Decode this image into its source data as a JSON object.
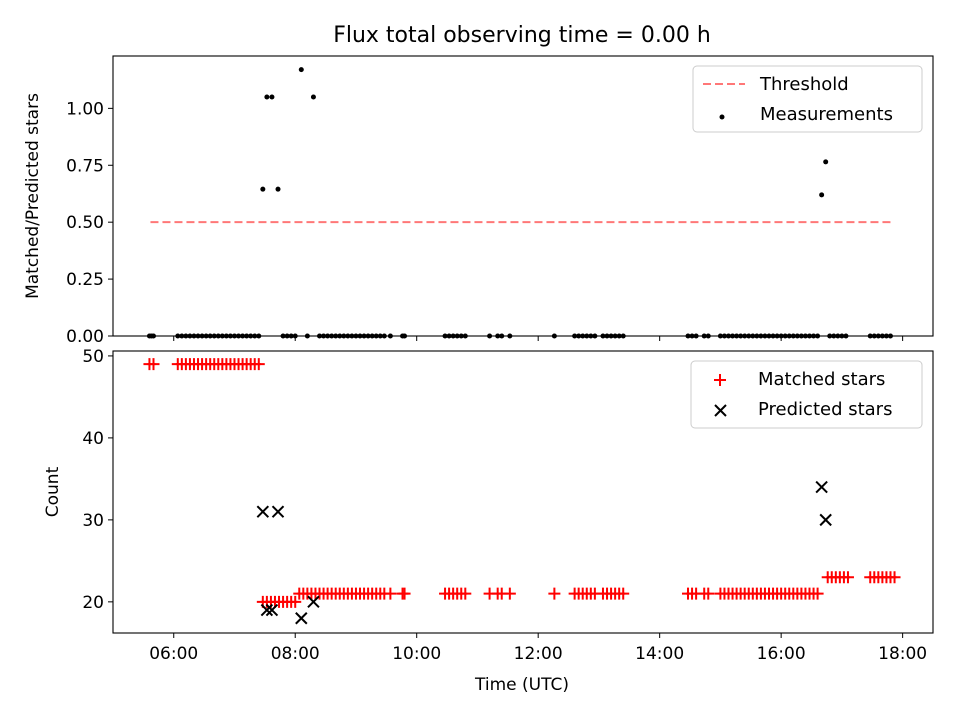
{
  "title": "Flux total observing time = 0.00 h",
  "colors": {
    "threshold": "#ff7777",
    "measurements": "#000000",
    "matched": "#ff0000",
    "predicted": "#000000"
  },
  "chart_data": [
    {
      "type": "scatter",
      "ylabel": "Matched/Predicted stars",
      "xlim": [
        "05:00",
        "18:30"
      ],
      "ylim": [
        0,
        1.23
      ],
      "y_ticks": [
        0.0,
        0.25,
        0.5,
        0.75,
        1.0
      ],
      "y_tick_labels": [
        "0.00",
        "0.25",
        "0.50",
        "0.75",
        "1.00"
      ],
      "x_ticks": [
        "06:00",
        "08:00",
        "10:00",
        "12:00",
        "14:00",
        "16:00",
        "18:00"
      ],
      "grid": false,
      "legend": "upper right",
      "threshold": {
        "name": "Threshold",
        "value": 0.5,
        "x_start": "05:37",
        "x_end": "17:48"
      },
      "series": [
        {
          "name": "Measurements",
          "points": [
            [
              "05:36",
              0
            ],
            [
              "05:38",
              0
            ],
            [
              "05:40",
              0
            ],
            [
              "06:04",
              0
            ],
            [
              "06:08",
              0
            ],
            [
              "06:12",
              0
            ],
            [
              "06:16",
              0
            ],
            [
              "06:20",
              0
            ],
            [
              "06:24",
              0
            ],
            [
              "06:28",
              0
            ],
            [
              "06:32",
              0
            ],
            [
              "06:36",
              0
            ],
            [
              "06:40",
              0
            ],
            [
              "06:44",
              0
            ],
            [
              "06:48",
              0
            ],
            [
              "06:52",
              0
            ],
            [
              "06:56",
              0
            ],
            [
              "07:00",
              0
            ],
            [
              "07:04",
              0
            ],
            [
              "07:08",
              0
            ],
            [
              "07:12",
              0
            ],
            [
              "07:16",
              0
            ],
            [
              "07:20",
              0
            ],
            [
              "07:24",
              0
            ],
            [
              "07:28",
              0.645
            ],
            [
              "07:32",
              1.05
            ],
            [
              "07:37",
              1.05
            ],
            [
              "07:43",
              0.645
            ],
            [
              "07:48",
              0
            ],
            [
              "07:52",
              0
            ],
            [
              "07:56",
              0
            ],
            [
              "08:00",
              0
            ],
            [
              "08:06",
              1.17
            ],
            [
              "08:12",
              0
            ],
            [
              "08:18",
              1.05
            ],
            [
              "08:24",
              0
            ],
            [
              "08:28",
              0
            ],
            [
              "08:32",
              0
            ],
            [
              "08:36",
              0
            ],
            [
              "08:40",
              0
            ],
            [
              "08:44",
              0
            ],
            [
              "08:48",
              0
            ],
            [
              "08:52",
              0
            ],
            [
              "08:56",
              0
            ],
            [
              "09:00",
              0
            ],
            [
              "09:04",
              0
            ],
            [
              "09:08",
              0
            ],
            [
              "09:12",
              0
            ],
            [
              "09:16",
              0
            ],
            [
              "09:20",
              0
            ],
            [
              "09:24",
              0
            ],
            [
              "09:28",
              0
            ],
            [
              "09:34",
              0
            ],
            [
              "09:46",
              0
            ],
            [
              "09:48",
              0
            ],
            [
              "10:28",
              0
            ],
            [
              "10:32",
              0
            ],
            [
              "10:36",
              0
            ],
            [
              "10:40",
              0
            ],
            [
              "10:44",
              0
            ],
            [
              "10:48",
              0
            ],
            [
              "11:12",
              0
            ],
            [
              "11:20",
              0
            ],
            [
              "11:24",
              0
            ],
            [
              "11:32",
              0
            ],
            [
              "12:16",
              0
            ],
            [
              "12:36",
              0
            ],
            [
              "12:40",
              0
            ],
            [
              "12:44",
              0
            ],
            [
              "12:48",
              0
            ],
            [
              "12:52",
              0
            ],
            [
              "12:56",
              0
            ],
            [
              "13:04",
              0
            ],
            [
              "13:08",
              0
            ],
            [
              "13:12",
              0
            ],
            [
              "13:16",
              0
            ],
            [
              "13:20",
              0
            ],
            [
              "13:24",
              0
            ],
            [
              "14:28",
              0
            ],
            [
              "14:32",
              0
            ],
            [
              "14:36",
              0
            ],
            [
              "14:44",
              0
            ],
            [
              "14:48",
              0
            ],
            [
              "15:00",
              0
            ],
            [
              "15:04",
              0
            ],
            [
              "15:08",
              0
            ],
            [
              "15:12",
              0
            ],
            [
              "15:16",
              0
            ],
            [
              "15:20",
              0
            ],
            [
              "15:24",
              0
            ],
            [
              "15:28",
              0
            ],
            [
              "15:32",
              0
            ],
            [
              "15:36",
              0
            ],
            [
              "15:40",
              0
            ],
            [
              "15:44",
              0
            ],
            [
              "15:48",
              0
            ],
            [
              "15:52",
              0
            ],
            [
              "15:56",
              0
            ],
            [
              "16:00",
              0
            ],
            [
              "16:04",
              0
            ],
            [
              "16:08",
              0
            ],
            [
              "16:12",
              0
            ],
            [
              "16:16",
              0
            ],
            [
              "16:20",
              0
            ],
            [
              "16:24",
              0
            ],
            [
              "16:28",
              0
            ],
            [
              "16:32",
              0
            ],
            [
              "16:36",
              0
            ],
            [
              "16:40",
              0.62
            ],
            [
              "16:44",
              0.765
            ],
            [
              "16:48",
              0
            ],
            [
              "16:52",
              0
            ],
            [
              "16:56",
              0
            ],
            [
              "17:00",
              0
            ],
            [
              "17:04",
              0
            ],
            [
              "17:28",
              0
            ],
            [
              "17:32",
              0
            ],
            [
              "17:36",
              0
            ],
            [
              "17:40",
              0
            ],
            [
              "17:44",
              0
            ],
            [
              "17:48",
              0
            ]
          ]
        }
      ]
    },
    {
      "type": "scatter",
      "xlabel": "Time (UTC)",
      "ylabel": "Count",
      "xlim": [
        "05:00",
        "18:30"
      ],
      "ylim": [
        16.2,
        50.6
      ],
      "y_ticks": [
        20,
        30,
        40,
        50
      ],
      "y_tick_labels": [
        "20",
        "30",
        "40",
        "50"
      ],
      "x_ticks": [
        "06:00",
        "08:00",
        "10:00",
        "12:00",
        "14:00",
        "16:00",
        "18:00"
      ],
      "x_tick_labels": [
        "06:00",
        "08:00",
        "10:00",
        "12:00",
        "14:00",
        "16:00",
        "18:00"
      ],
      "grid": false,
      "legend": "upper right",
      "series": [
        {
          "name": "Matched stars",
          "points": [
            [
              "05:36",
              49
            ],
            [
              "05:40",
              49
            ],
            [
              "06:04",
              49
            ],
            [
              "06:08",
              49
            ],
            [
              "06:12",
              49
            ],
            [
              "06:16",
              49
            ],
            [
              "06:20",
              49
            ],
            [
              "06:24",
              49
            ],
            [
              "06:28",
              49
            ],
            [
              "06:32",
              49
            ],
            [
              "06:36",
              49
            ],
            [
              "06:40",
              49
            ],
            [
              "06:44",
              49
            ],
            [
              "06:48",
              49
            ],
            [
              "06:52",
              49
            ],
            [
              "06:56",
              49
            ],
            [
              "07:00",
              49
            ],
            [
              "07:04",
              49
            ],
            [
              "07:08",
              49
            ],
            [
              "07:12",
              49
            ],
            [
              "07:16",
              49
            ],
            [
              "07:20",
              49
            ],
            [
              "07:24",
              49
            ],
            [
              "07:28",
              20
            ],
            [
              "07:32",
              20
            ],
            [
              "07:36",
              20
            ],
            [
              "07:40",
              20
            ],
            [
              "07:44",
              20
            ],
            [
              "07:48",
              20
            ],
            [
              "07:52",
              20
            ],
            [
              "07:56",
              20
            ],
            [
              "08:00",
              20
            ],
            [
              "08:04",
              21
            ],
            [
              "08:08",
              21
            ],
            [
              "08:12",
              21
            ],
            [
              "08:16",
              21
            ],
            [
              "08:20",
              21
            ],
            [
              "08:24",
              21
            ],
            [
              "08:28",
              21
            ],
            [
              "08:32",
              21
            ],
            [
              "08:36",
              21
            ],
            [
              "08:40",
              21
            ],
            [
              "08:44",
              21
            ],
            [
              "08:48",
              21
            ],
            [
              "08:52",
              21
            ],
            [
              "08:56",
              21
            ],
            [
              "09:00",
              21
            ],
            [
              "09:04",
              21
            ],
            [
              "09:08",
              21
            ],
            [
              "09:12",
              21
            ],
            [
              "09:16",
              21
            ],
            [
              "09:20",
              21
            ],
            [
              "09:24",
              21
            ],
            [
              "09:28",
              21
            ],
            [
              "09:34",
              21
            ],
            [
              "09:46",
              21
            ],
            [
              "09:48",
              21
            ],
            [
              "10:28",
              21
            ],
            [
              "10:32",
              21
            ],
            [
              "10:36",
              21
            ],
            [
              "10:40",
              21
            ],
            [
              "10:44",
              21
            ],
            [
              "10:48",
              21
            ],
            [
              "11:12",
              21
            ],
            [
              "11:20",
              21
            ],
            [
              "11:24",
              21
            ],
            [
              "11:32",
              21
            ],
            [
              "12:16",
              21
            ],
            [
              "12:36",
              21
            ],
            [
              "12:40",
              21
            ],
            [
              "12:44",
              21
            ],
            [
              "12:48",
              21
            ],
            [
              "12:52",
              21
            ],
            [
              "12:56",
              21
            ],
            [
              "13:04",
              21
            ],
            [
              "13:08",
              21
            ],
            [
              "13:12",
              21
            ],
            [
              "13:16",
              21
            ],
            [
              "13:20",
              21
            ],
            [
              "13:24",
              21
            ],
            [
              "14:28",
              21
            ],
            [
              "14:32",
              21
            ],
            [
              "14:36",
              21
            ],
            [
              "14:44",
              21
            ],
            [
              "14:48",
              21
            ],
            [
              "15:00",
              21
            ],
            [
              "15:04",
              21
            ],
            [
              "15:08",
              21
            ],
            [
              "15:12",
              21
            ],
            [
              "15:16",
              21
            ],
            [
              "15:20",
              21
            ],
            [
              "15:24",
              21
            ],
            [
              "15:28",
              21
            ],
            [
              "15:32",
              21
            ],
            [
              "15:36",
              21
            ],
            [
              "15:40",
              21
            ],
            [
              "15:44",
              21
            ],
            [
              "15:48",
              21
            ],
            [
              "15:52",
              21
            ],
            [
              "15:56",
              21
            ],
            [
              "16:00",
              21
            ],
            [
              "16:04",
              21
            ],
            [
              "16:08",
              21
            ],
            [
              "16:12",
              21
            ],
            [
              "16:16",
              21
            ],
            [
              "16:20",
              21
            ],
            [
              "16:24",
              21
            ],
            [
              "16:28",
              21
            ],
            [
              "16:32",
              21
            ],
            [
              "16:36",
              21
            ],
            [
              "16:46",
              23
            ],
            [
              "16:50",
              23
            ],
            [
              "16:54",
              23
            ],
            [
              "16:58",
              23
            ],
            [
              "17:02",
              23
            ],
            [
              "17:06",
              23
            ],
            [
              "17:28",
              23
            ],
            [
              "17:32",
              23
            ],
            [
              "17:36",
              23
            ],
            [
              "17:40",
              23
            ],
            [
              "17:44",
              23
            ],
            [
              "17:48",
              23
            ],
            [
              "17:52",
              23
            ]
          ]
        },
        {
          "name": "Predicted stars",
          "points": [
            [
              "07:28",
              31
            ],
            [
              "07:32",
              19
            ],
            [
              "07:37",
              19
            ],
            [
              "07:43",
              31
            ],
            [
              "08:06",
              18
            ],
            [
              "08:18",
              20
            ],
            [
              "16:40",
              34
            ],
            [
              "16:44",
              30
            ]
          ]
        }
      ]
    }
  ]
}
